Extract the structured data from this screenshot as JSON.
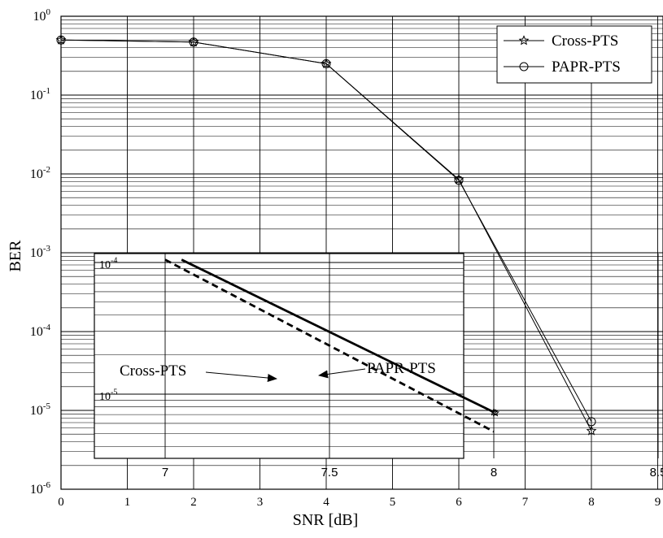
{
  "chart_data": [
    {
      "type": "line",
      "title": "",
      "xlabel": "SNR [dB]",
      "ylabel": "BER",
      "x_scale": "linear",
      "y_scale": "log",
      "xlim": [
        0,
        9
      ],
      "ylim": [
        1e-06,
        1
      ],
      "x_ticks": [
        "0",
        "1",
        "2",
        "3",
        "4",
        "5",
        "6",
        "7",
        "8",
        "9"
      ],
      "y_ticks": [
        {
          "base": "10",
          "exp": "-6",
          "value": 1e-06
        },
        {
          "base": "10",
          "exp": "-5",
          "value": 1e-05
        },
        {
          "base": "10",
          "exp": "-4",
          "value": 0.0001
        },
        {
          "base": "10",
          "exp": "-3",
          "value": 0.001
        },
        {
          "base": "10",
          "exp": "-2",
          "value": 0.01
        },
        {
          "base": "10",
          "exp": "-1",
          "value": 0.1
        },
        {
          "base": "10",
          "exp": "0",
          "value": 1
        }
      ],
      "grid": true,
      "legend_position": "top-right",
      "series": [
        {
          "name": "Cross-PTS",
          "marker": "star",
          "color": "#000000",
          "x": [
            0,
            2,
            4,
            6,
            8
          ],
          "y": [
            0.5,
            0.47,
            0.25,
            0.0085,
            5.5e-06
          ]
        },
        {
          "name": "PAPR-PTS",
          "marker": "circle",
          "color": "#000000",
          "x": [
            0,
            2,
            4,
            6,
            8
          ],
          "y": [
            0.5,
            0.47,
            0.25,
            0.0083,
            7.2e-06
          ]
        }
      ]
    },
    {
      "type": "line",
      "title": "",
      "y_scale": "log",
      "xlim": [
        6.53,
        8.97
      ],
      "ylim": [
        2.1e-06,
        0.0001
      ],
      "x_ticks": [
        "7",
        "7.5",
        "8",
        "8.5"
      ],
      "y_ticks": [
        {
          "base": "10",
          "exp": "-4",
          "value": 0.0001
        },
        {
          "base": "10",
          "exp": "-5",
          "value": 1e-05
        }
      ],
      "grid": true,
      "annotations": [
        {
          "text": "Cross-PTS",
          "points_to": "dashed line"
        },
        {
          "text": "PAPR-PTS",
          "points_to": "solid line"
        }
      ],
      "series": [
        {
          "name": "Cross-PTS",
          "style": "dashed",
          "color": "#000000",
          "x": [
            7,
            8
          ],
          "y": [
            0.000105,
            5.2e-06
          ]
        },
        {
          "name": "PAPR-PTS",
          "style": "solid",
          "color": "#000000",
          "x": [
            7.05,
            8
          ],
          "y": [
            0.000105,
            7.3e-06
          ]
        }
      ]
    }
  ]
}
